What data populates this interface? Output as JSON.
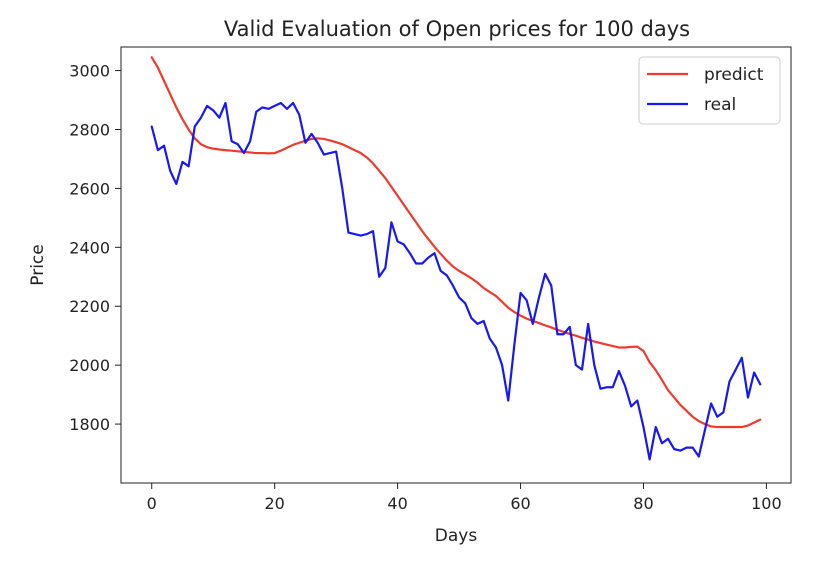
{
  "chart_data": {
    "type": "line",
    "title": "Valid Evaluation of Open prices for 100 days",
    "xlabel": "Days",
    "ylabel": "Price",
    "xlim": [
      -5,
      104
    ],
    "ylim": [
      1600,
      3080
    ],
    "xticks": [
      0,
      20,
      40,
      60,
      80,
      100
    ],
    "yticks": [
      1800,
      2000,
      2200,
      2400,
      2600,
      2800,
      3000
    ],
    "grid": false,
    "legend_position": "top-right",
    "series": [
      {
        "name": "predict",
        "color": "#f03a2e",
        "x": [
          0,
          1,
          2,
          3,
          4,
          5,
          6,
          7,
          8,
          9,
          10,
          11,
          12,
          13,
          14,
          15,
          16,
          17,
          18,
          19,
          20,
          21,
          22,
          23,
          24,
          25,
          26,
          27,
          28,
          29,
          30,
          31,
          32,
          33,
          34,
          35,
          36,
          37,
          38,
          39,
          40,
          41,
          42,
          43,
          44,
          45,
          46,
          47,
          48,
          49,
          50,
          51,
          52,
          53,
          54,
          55,
          56,
          57,
          58,
          59,
          60,
          61,
          62,
          63,
          64,
          65,
          66,
          67,
          68,
          69,
          70,
          71,
          72,
          73,
          74,
          75,
          76,
          77,
          78,
          79,
          80,
          81,
          82,
          83,
          84,
          85,
          86,
          87,
          88,
          89,
          90,
          91,
          92,
          93,
          94,
          95,
          96,
          97,
          98,
          99
        ],
        "values": [
          3045,
          3010,
          2965,
          2920,
          2875,
          2835,
          2800,
          2770,
          2750,
          2740,
          2735,
          2732,
          2730,
          2728,
          2726,
          2724,
          2722,
          2720,
          2720,
          2719,
          2720,
          2728,
          2738,
          2748,
          2755,
          2762,
          2768,
          2770,
          2768,
          2763,
          2757,
          2750,
          2740,
          2730,
          2720,
          2705,
          2685,
          2660,
          2635,
          2605,
          2575,
          2545,
          2515,
          2485,
          2455,
          2428,
          2402,
          2378,
          2355,
          2335,
          2320,
          2308,
          2295,
          2280,
          2262,
          2248,
          2235,
          2215,
          2195,
          2180,
          2168,
          2158,
          2150,
          2143,
          2135,
          2128,
          2120,
          2113,
          2106,
          2100,
          2093,
          2087,
          2080,
          2075,
          2070,
          2065,
          2060,
          2060,
          2062,
          2063,
          2048,
          2010,
          1983,
          1950,
          1915,
          1890,
          1865,
          1845,
          1825,
          1810,
          1800,
          1792,
          1790,
          1790,
          1790,
          1790,
          1790,
          1795,
          1805,
          1815
        ]
      },
      {
        "name": "real",
        "color": "#1818f2",
        "x": [
          0,
          1,
          2,
          3,
          4,
          5,
          6,
          7,
          8,
          9,
          10,
          11,
          12,
          13,
          14,
          15,
          16,
          17,
          18,
          19,
          20,
          21,
          22,
          23,
          24,
          25,
          26,
          27,
          28,
          29,
          30,
          31,
          32,
          33,
          34,
          35,
          36,
          37,
          38,
          39,
          40,
          41,
          42,
          43,
          44,
          45,
          46,
          47,
          48,
          49,
          50,
          51,
          52,
          53,
          54,
          55,
          56,
          57,
          58,
          59,
          60,
          61,
          62,
          63,
          64,
          65,
          66,
          67,
          68,
          69,
          70,
          71,
          72,
          73,
          74,
          75,
          76,
          77,
          78,
          79,
          80,
          81,
          82,
          83,
          84,
          85,
          86,
          87,
          88,
          89,
          90,
          91,
          92,
          93,
          94,
          95,
          96,
          97,
          98,
          99
        ],
        "values": [
          2810,
          2730,
          2745,
          2660,
          2615,
          2690,
          2675,
          2810,
          2840,
          2880,
          2865,
          2840,
          2890,
          2760,
          2750,
          2720,
          2760,
          2860,
          2875,
          2870,
          2880,
          2890,
          2870,
          2890,
          2850,
          2755,
          2785,
          2755,
          2715,
          2720,
          2725,
          2600,
          2450,
          2445,
          2440,
          2445,
          2455,
          2300,
          2330,
          2485,
          2420,
          2410,
          2380,
          2345,
          2345,
          2365,
          2380,
          2320,
          2305,
          2270,
          2230,
          2210,
          2160,
          2140,
          2150,
          2090,
          2060,
          2000,
          1880,
          2070,
          2245,
          2220,
          2140,
          2230,
          2310,
          2270,
          2105,
          2105,
          2130,
          2000,
          1985,
          2140,
          2000,
          1920,
          1925,
          1925,
          1980,
          1930,
          1860,
          1880,
          1790,
          1680,
          1790,
          1735,
          1750,
          1715,
          1710,
          1720,
          1720,
          1690,
          1780,
          1870,
          1825,
          1840,
          1945,
          1985,
          2025,
          1890,
          1975,
          1935
        ]
      }
    ]
  }
}
